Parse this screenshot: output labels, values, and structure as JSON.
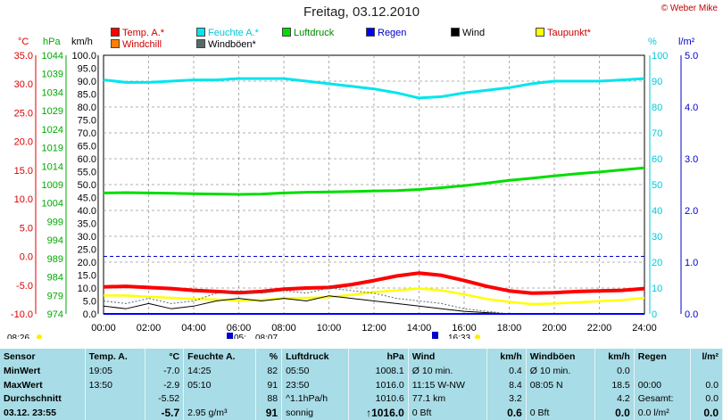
{
  "title": "Freitag, 03.12.2010",
  "copyright": "© Weber Mike",
  "legend": [
    {
      "label": "Temp. A.*",
      "color": "#ff0000",
      "text_color": "#cc0000"
    },
    {
      "label": "Feuchte A.*",
      "color": "#00e5ee",
      "text_color": "#00c8d8"
    },
    {
      "label": "Luftdruck",
      "color": "#00dd00",
      "text_color": "#008800"
    },
    {
      "label": "Regen",
      "color": "#0000ff",
      "text_color": "#0000cc"
    },
    {
      "label": "Wind",
      "color": "#000000",
      "text_color": "#000000"
    },
    {
      "label": "Taupunkt*",
      "color": "#ffff00",
      "text_color": "#cc0000"
    },
    {
      "label": "Windchill",
      "color": "#ff7f00",
      "text_color": "#cc0000"
    },
    {
      "label": "Windböen*",
      "color": "#556b6b",
      "text_color": "#000000"
    }
  ],
  "axis_units": {
    "temp": "°C",
    "pressure": "hPa",
    "wind": "km/h",
    "humidity": "%",
    "rain": "l/m²"
  },
  "sun": {
    "rise": "08:26",
    "set": "16:33",
    "mark1": "05:",
    "mark2": "08:07"
  },
  "chart_data": {
    "type": "line",
    "x_ticks": [
      "00:00",
      "02:00",
      "04:00",
      "06:00",
      "08:00",
      "10:00",
      "12:00",
      "14:00",
      "16:00",
      "18:00",
      "20:00",
      "22:00",
      "24:00"
    ],
    "axes": {
      "temp": {
        "label": "°C",
        "range": [
          -10,
          35
        ],
        "ticks": [
          "35.0",
          "30.0",
          "25.0",
          "20.0",
          "15.0",
          "10.0",
          "5.0",
          "0.0",
          "-5.0",
          "-10.0"
        ]
      },
      "pressure": {
        "label": "hPa",
        "range": [
          974,
          1048
        ],
        "ticks": [
          "1044",
          "1039",
          "1034",
          "1029",
          "1024",
          "1019",
          "1014",
          "1009",
          "1004",
          "999",
          "994",
          "989",
          "984",
          "979",
          "974"
        ]
      },
      "wind": {
        "label": "km/h",
        "range": [
          0,
          100
        ],
        "ticks": [
          "100.0",
          "95.0",
          "90.0",
          "85.0",
          "80.0",
          "75.0",
          "70.0",
          "65.0",
          "60.0",
          "55.0",
          "50.0",
          "45.0",
          "40.0",
          "35.0",
          "30.0",
          "25.0",
          "20.0",
          "15.0",
          "10.0",
          "5.0",
          "0.0"
        ]
      },
      "humidity": {
        "label": "%",
        "range": [
          0,
          100
        ],
        "ticks": [
          "100",
          "90",
          "80",
          "70",
          "60",
          "50",
          "40",
          "30",
          "20",
          "10",
          "0"
        ]
      },
      "rain": {
        "label": "l/m²",
        "range": [
          0,
          5
        ],
        "ticks": [
          "5.0",
          "4.0",
          "3.0",
          "2.0",
          "1.0",
          "0.0"
        ]
      }
    },
    "series": [
      {
        "name": "Feuchte A.*",
        "axis": "humidity",
        "x": [
          0,
          1,
          2,
          3,
          4,
          5,
          6,
          7,
          8,
          9,
          10,
          11,
          12,
          13,
          14,
          15,
          16,
          17,
          18,
          19,
          20,
          21,
          22,
          23,
          24
        ],
        "values": [
          90.5,
          89.5,
          89.5,
          90,
          90.5,
          90.5,
          91,
          91,
          91,
          90,
          89,
          88,
          87,
          85.5,
          83.5,
          84,
          85.5,
          86.5,
          87.5,
          89,
          90,
          90,
          90,
          90.5,
          91
        ]
      },
      {
        "name": "Luftdruck",
        "axis": "pressure",
        "x": [
          0,
          1,
          2,
          3,
          4,
          5,
          6,
          7,
          8,
          9,
          10,
          11,
          12,
          13,
          14,
          15,
          16,
          17,
          18,
          19,
          20,
          21,
          22,
          23,
          24
        ],
        "values": [
          1008.6,
          1008.7,
          1008.6,
          1008.5,
          1008.4,
          1008.3,
          1008.2,
          1008.3,
          1008.6,
          1008.8,
          1008.9,
          1009.0,
          1009.2,
          1009.3,
          1009.6,
          1010.1,
          1010.7,
          1011.4,
          1012.2,
          1012.8,
          1013.5,
          1014.1,
          1014.6,
          1015.2,
          1015.8
        ]
      },
      {
        "name": "Temp. A.*",
        "axis": "temp",
        "x": [
          0,
          1,
          2,
          3,
          4,
          5,
          6,
          7,
          8,
          9,
          10,
          11,
          12,
          13,
          14,
          15,
          16,
          17,
          18,
          19,
          20,
          21,
          22,
          23,
          24
        ],
        "values": [
          -5.3,
          -5.2,
          -5.4,
          -5.6,
          -5.9,
          -6.1,
          -6.3,
          -6.1,
          -5.7,
          -5.5,
          -5.4,
          -4.9,
          -4.2,
          -3.4,
          -2.9,
          -3.3,
          -4.2,
          -5.2,
          -6.0,
          -6.4,
          -6.3,
          -6.1,
          -6.0,
          -5.9,
          -5.6
        ]
      },
      {
        "name": "Taupunkt*",
        "axis": "temp",
        "x": [
          0,
          1,
          2,
          3,
          4,
          5,
          6,
          7,
          8,
          9,
          10,
          11,
          12,
          13,
          14,
          15,
          16,
          17,
          18,
          19,
          20,
          21,
          22,
          23,
          24
        ],
        "values": [
          -6.8,
          -6.8,
          -7.0,
          -7.2,
          -7.4,
          -7.5,
          -7.7,
          -7.6,
          -7.3,
          -7.2,
          -7.1,
          -6.7,
          -6.2,
          -5.9,
          -5.6,
          -5.9,
          -6.6,
          -7.4,
          -7.9,
          -8.3,
          -8.2,
          -8.0,
          -7.8,
          -7.6,
          -7.2
        ]
      },
      {
        "name": "Wind",
        "axis": "wind",
        "x": [
          0,
          1,
          2,
          3,
          4,
          5,
          6,
          7,
          8,
          9,
          10,
          11,
          12,
          13,
          14,
          15,
          16,
          17,
          18,
          19,
          20,
          21,
          22,
          23,
          24
        ],
        "values": [
          3,
          2,
          4,
          2,
          3,
          5,
          6,
          5,
          6,
          5,
          7,
          6,
          5,
          4,
          3,
          2,
          1,
          0.5,
          0,
          0,
          0,
          0,
          0,
          0,
          0
        ]
      },
      {
        "name": "Windböen*",
        "axis": "wind",
        "x": [
          0,
          1,
          2,
          3,
          4,
          5,
          6,
          7,
          8,
          9,
          10,
          11,
          12,
          13,
          14,
          15,
          16,
          17,
          18,
          19,
          20,
          21,
          22,
          23,
          24
        ],
        "values": [
          5,
          4,
          6,
          4,
          5,
          8,
          9,
          8,
          9,
          8,
          10,
          9,
          8,
          6,
          5,
          4,
          2,
          1,
          0,
          0,
          0,
          0,
          0,
          0,
          0
        ]
      },
      {
        "name": "Regen",
        "axis": "rain",
        "x": [
          0,
          24
        ],
        "values": [
          0,
          0
        ]
      }
    ],
    "reference_lines": [
      {
        "axis": "temp",
        "value": 0.0,
        "color": "#0000cc"
      }
    ]
  },
  "stats": {
    "headers": [
      "Sensor",
      "Temp. A.",
      "°C",
      "Feuchte A.",
      "%",
      "Luftdruck",
      "hPa",
      "Wind",
      "km/h",
      "Windböen",
      "km/h",
      "Regen",
      "l/m²"
    ],
    "rows": [
      [
        "MinWert",
        "19:05",
        "-7.0",
        "14:25",
        "82",
        "05:50",
        "1008.1",
        "Ø 10 min.",
        "0.4",
        "Ø 10 min.",
        "0.0",
        "",
        ""
      ],
      [
        "MaxWert",
        "13:50",
        "-2.9",
        "05:10",
        "91",
        "23:50",
        "1016.0",
        "11:15   W-NW",
        "8.4",
        "08:05   N",
        "18.5",
        "00:00",
        "0.0"
      ],
      [
        "Durchschnitt",
        "",
        "-5.52",
        "",
        "88",
        "^1.1hPa/h",
        "1010.6",
        "77.1 km",
        "3.2",
        "",
        "4.2",
        "Gesamt:",
        "0.0"
      ],
      [
        "03.12.  23:55",
        "",
        "-5.7",
        "2.95 g/m³",
        "91",
        "sonnig",
        "↑1016.0",
        "0 Bft",
        "0.6",
        "0 Bft",
        "0.0",
        "0.0 l/m²",
        "0.0"
      ]
    ]
  }
}
